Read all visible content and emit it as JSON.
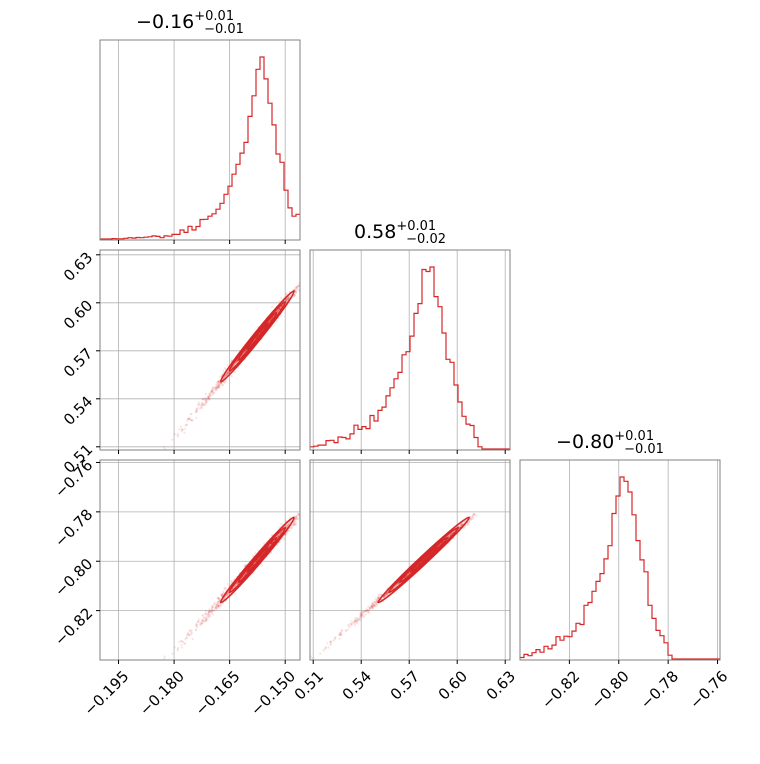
{
  "chart_data": {
    "type": "corner",
    "color": "#d62728",
    "grid": true,
    "parameters": [
      {
        "title": {
          "value": "−0.16",
          "plus": "+0.01",
          "minus": "−0.01"
        },
        "range": [
          -0.2,
          -0.146
        ],
        "ticks": [
          -0.195,
          -0.18,
          -0.165,
          -0.15
        ],
        "tick_labels": [
          "−0.195",
          "−0.180",
          "−0.165",
          "−0.150"
        ],
        "hist_shape": "skewed",
        "mean": -0.1575,
        "sigma": 0.0047
      },
      {
        "title": {
          "value": "0.58",
          "plus": "+0.01",
          "minus": "−0.02"
        },
        "range": [
          0.508,
          0.633
        ],
        "ticks": [
          0.51,
          0.54,
          0.57,
          0.6,
          0.63
        ],
        "tick_labels": [
          "0.51",
          "0.54",
          "0.57",
          "0.60",
          "0.63"
        ],
        "hist_shape": "normal",
        "mean": 0.579,
        "sigma": 0.0135
      },
      {
        "title": {
          "value": "−0.80",
          "plus": "+0.01",
          "minus": "−0.01"
        },
        "range": [
          -0.84,
          -0.759
        ],
        "ticks": [
          -0.82,
          -0.8,
          -0.78,
          -0.76
        ],
        "tick_labels": [
          "−0.82",
          "−0.80",
          "−0.78",
          "−0.76"
        ],
        "hist_shape": "normal",
        "mean": -0.7995,
        "sigma": 0.0082
      }
    ],
    "panels": [
      {
        "type": "hist",
        "row": 0,
        "col": 0,
        "param": 0
      },
      {
        "type": "hist",
        "row": 1,
        "col": 1,
        "param": 1
      },
      {
        "type": "hist",
        "row": 2,
        "col": 2,
        "param": 2
      },
      {
        "type": "scatter",
        "row": 1,
        "col": 0,
        "x": 0,
        "y": 1
      },
      {
        "type": "scatter",
        "row": 2,
        "col": 0,
        "x": 0,
        "y": 2
      },
      {
        "type": "scatter",
        "row": 2,
        "col": 1,
        "x": 1,
        "y": 2
      }
    ]
  }
}
